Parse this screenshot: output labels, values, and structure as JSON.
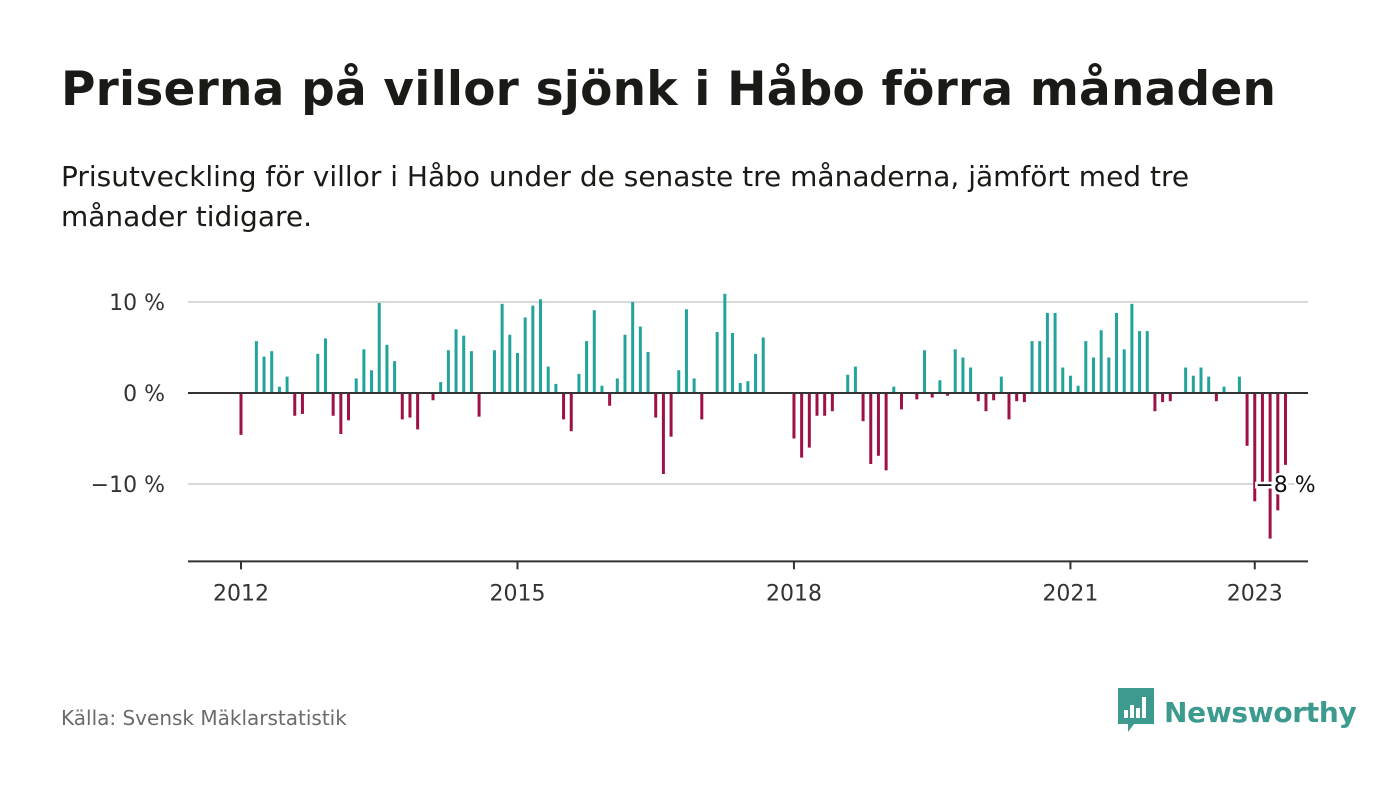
{
  "header": {
    "title": "Priserna på villor sjönk i Håbo förra månaden",
    "subtitle": "Prisutveckling för villor i Håbo under de senaste tre månaderna, jämfört med tre månader tidigare."
  },
  "footer": {
    "source": "Källa: Svensk Mäklarstatistik",
    "brand": "Newsworthy",
    "brand_icon": "bar-chart-speech-bubble-icon"
  },
  "colors": {
    "positive": "#22a49a",
    "negative": "#9e1048",
    "zero_line": "#333333",
    "grid": "#d9d9d9",
    "brand": "#3d9a8f"
  },
  "chart_data": {
    "type": "bar",
    "ylim": [
      -18.5,
      10
    ],
    "yticks": [
      10,
      0,
      -10
    ],
    "ytick_labels": [
      "10 %",
      "0 %",
      "−10 %"
    ],
    "xticks": [
      {
        "label": "2012",
        "month_index": 11
      },
      {
        "label": "2015",
        "month_index": 47
      },
      {
        "label": "2018",
        "month_index": 83
      },
      {
        "label": "2021",
        "month_index": 119
      },
      {
        "label": "2023",
        "month_index": 143
      }
    ],
    "grid": true,
    "legend": "none",
    "last_value_label": "−8 %",
    "values": [
      -4.6,
      0,
      5.7,
      4.0,
      4.6,
      0.7,
      1.8,
      -2.5,
      -2.3,
      0,
      4.3,
      6.0,
      -2.5,
      -4.5,
      -3.0,
      1.6,
      4.8,
      2.5,
      9.9,
      5.3,
      3.5,
      -2.9,
      -2.7,
      -4.0,
      0,
      -0.8,
      1.2,
      4.7,
      7.0,
      6.3,
      4.6,
      -2.6,
      0,
      4.7,
      9.8,
      6.4,
      4.4,
      8.3,
      9.6,
      10.3,
      2.9,
      1.0,
      -2.9,
      -4.2,
      2.1,
      5.7,
      9.1,
      0.8,
      -1.4,
      1.6,
      6.4,
      10.0,
      7.3,
      4.5,
      -2.7,
      -8.9,
      -4.8,
      2.5,
      9.2,
      1.6,
      -2.9,
      0,
      6.7,
      10.9,
      6.6,
      1.1,
      1.3,
      4.3,
      6.1,
      0,
      0,
      0,
      -5.0,
      -7.1,
      -6.0,
      -2.5,
      -2.5,
      -2.0,
      0,
      2.0,
      2.9,
      -3.1,
      -7.8,
      -6.9,
      -8.5,
      0.7,
      -1.8,
      0,
      -0.7,
      4.7,
      -0.5,
      1.4,
      -0.3,
      4.8,
      3.9,
      2.8,
      -0.9,
      -2.0,
      -0.8,
      1.8,
      -2.9,
      -0.9,
      -1.0,
      5.7,
      5.7,
      8.8,
      8.8,
      2.8,
      1.9,
      0.8,
      5.7,
      3.9,
      6.9,
      3.9,
      8.8,
      4.8,
      9.8,
      6.8,
      6.8,
      -2.0,
      -1.0,
      -0.9,
      0,
      2.8,
      1.9,
      2.8,
      1.8,
      -0.9,
      0.7,
      0,
      1.8,
      -5.8,
      -11.9,
      -9.8,
      -16.0,
      -12.9,
      -7.9
    ]
  }
}
